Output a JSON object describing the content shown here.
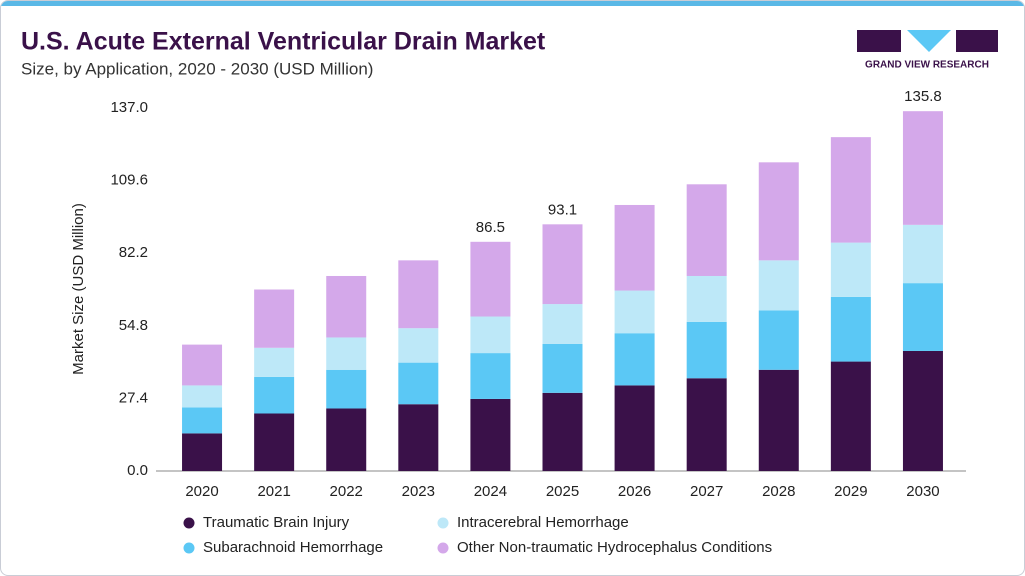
{
  "chart_data": {
    "type": "stacked-bar",
    "title": "U.S. Acute External Ventricular Drain Market",
    "subtitle": "Size, by Application, 2020 - 2030 (USD Million)",
    "brand": "GRAND VIEW RESEARCH",
    "y_label": "Market Size (USD Million)",
    "categories": [
      "2020",
      "2021",
      "2022",
      "2023",
      "2024",
      "2025",
      "2026",
      "2027",
      "2028",
      "2029",
      "2030"
    ],
    "series": [
      {
        "name": "Traumatic Brain Injury",
        "color": "#3a1149",
        "values": [
          14.2,
          21.7,
          23.6,
          25.2,
          27.2,
          29.5,
          32.3,
          35.0,
          38.2,
          41.3,
          45.3
        ]
      },
      {
        "name": "Subarachnoid Hemorrhage",
        "color": "#5bc8f5",
        "values": [
          9.8,
          13.8,
          14.6,
          15.7,
          17.3,
          18.5,
          19.7,
          21.3,
          22.4,
          24.4,
          25.6
        ]
      },
      {
        "name": "Intracerebral Hemorrhage",
        "color": "#bde8f8",
        "values": [
          8.3,
          11.0,
          12.2,
          13.0,
          13.8,
          15.0,
          16.1,
          17.3,
          18.9,
          20.5,
          22.0
        ]
      },
      {
        "name": "Other Non-traumatic Hydrocephalus Conditions",
        "color": "#d4a8ea",
        "values": [
          15.4,
          22.0,
          23.2,
          25.6,
          28.2,
          30.1,
          32.3,
          34.6,
          37.0,
          39.8,
          42.9
        ]
      }
    ],
    "total_labels": [
      null,
      null,
      null,
      null,
      86.5,
      93.1,
      null,
      null,
      null,
      null,
      135.8
    ],
    "ylim": [
      0,
      137
    ],
    "yticks": [
      {
        "value": 0,
        "label": "0.0"
      },
      27.4,
      54.8,
      82.2,
      109.6,
      {
        "value": 137,
        "label": "137.0"
      }
    ],
    "grid": false
  }
}
